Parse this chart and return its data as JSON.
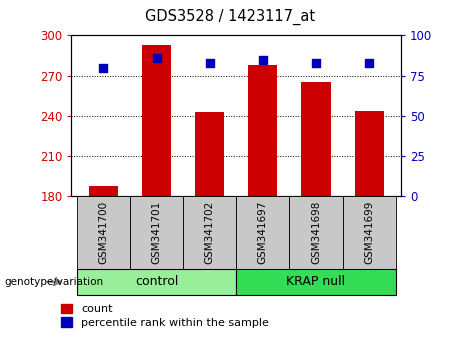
{
  "title": "GDS3528 / 1423117_at",
  "samples": [
    "GSM341700",
    "GSM341701",
    "GSM341702",
    "GSM341697",
    "GSM341698",
    "GSM341699"
  ],
  "counts": [
    188,
    293,
    243,
    278,
    265,
    244
  ],
  "percentiles": [
    80,
    86,
    83,
    85,
    83,
    83
  ],
  "ylim_left": [
    180,
    300
  ],
  "ylim_right": [
    0,
    100
  ],
  "yticks_left": [
    180,
    210,
    240,
    270,
    300
  ],
  "yticks_right": [
    0,
    25,
    50,
    75,
    100
  ],
  "bar_color": "#CC0000",
  "dot_color": "#0000BB",
  "bar_width": 0.55,
  "groups": [
    {
      "label": "control",
      "indices": [
        0,
        1,
        2
      ],
      "color": "#99EE99"
    },
    {
      "label": "KRAP null",
      "indices": [
        3,
        4,
        5
      ],
      "color": "#33DD55"
    }
  ],
  "xlabel_label": "genotype/variation",
  "legend_count_label": "count",
  "legend_percentile_label": "percentile rank within the sample",
  "left_tick_color": "#CC0000",
  "right_tick_color": "#0000BB",
  "tick_bg_color": "#C8C8C8",
  "plot_bg": "#FFFFFF"
}
